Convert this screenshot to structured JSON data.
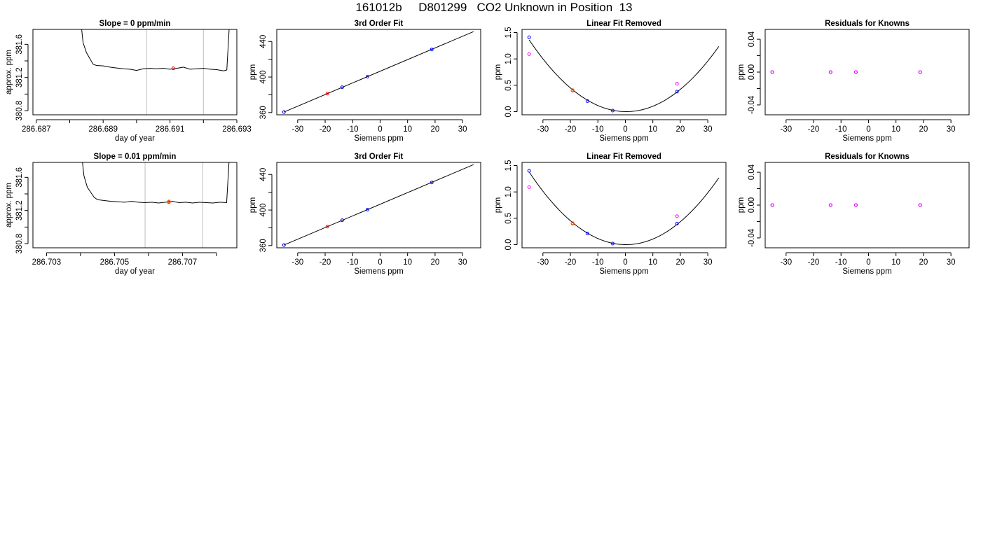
{
  "title": "161012b     D801299   CO2 Unknown in Position  13",
  "chart_data": [
    {
      "type": "line",
      "title": "Slope =  0  ppm/min",
      "xlabel": "day of year",
      "ylabel": "approx. ppm",
      "xlim": [
        286.6869,
        286.693
      ],
      "ylim": [
        380.75,
        381.78
      ],
      "xticks": [
        286.687,
        286.688,
        286.689,
        286.69,
        286.691,
        286.692,
        286.693
      ],
      "xtick_labels": [
        "286.687",
        "",
        "286.689",
        "",
        "286.691",
        "",
        "286.693"
      ],
      "yticks": [
        380.8,
        381.0,
        381.2,
        381.4,
        381.6
      ],
      "ytick_labels": [
        "380.8",
        "",
        "381.2",
        "",
        "381.6"
      ],
      "vlines": [
        286.6903,
        286.692
      ],
      "vline_color": "#bebebe",
      "series": [
        {
          "style": "line",
          "color": "#000000",
          "x": [
            286.6883,
            286.6884,
            286.6885,
            286.6886,
            286.6887,
            286.6888,
            286.689,
            286.6892,
            286.6894,
            286.6896,
            286.6898,
            286.69,
            286.6902,
            286.6904,
            286.6906,
            286.6908,
            286.691,
            286.6912,
            286.6914,
            286.6916,
            286.6918,
            286.692,
            286.6922,
            286.6924,
            286.6926,
            286.6927,
            286.6928
          ],
          "y": [
            382.0,
            381.62,
            381.5,
            381.43,
            381.36,
            381.345,
            381.34,
            381.325,
            381.315,
            381.305,
            381.3,
            381.285,
            381.305,
            381.31,
            381.305,
            381.31,
            381.3,
            381.31,
            381.325,
            381.3,
            381.305,
            381.31,
            381.3,
            381.295,
            381.28,
            381.29,
            382.0
          ]
        },
        {
          "style": "point",
          "color": "#ff0000",
          "x": [
            286.6911
          ],
          "y": [
            381.31
          ]
        }
      ]
    },
    {
      "type": "scatter",
      "title": "3rd Order Fit",
      "xlabel": "Siemens ppm",
      "ylabel": "ppm",
      "xlim": [
        -37.6,
        36.6
      ],
      "ylim": [
        357.5,
        453.6
      ],
      "xticks": [
        -30,
        -20,
        -10,
        0,
        10,
        20,
        30
      ],
      "xtick_labels": [
        "-30",
        "-20",
        "-10",
        "0",
        "10",
        "20",
        "30"
      ],
      "yticks": [
        360,
        380,
        400,
        420,
        440
      ],
      "ytick_labels": [
        "360",
        "",
        "400",
        "",
        "440"
      ],
      "series": [
        {
          "style": "line",
          "color": "#000000",
          "x": [
            -35.0,
            34.0
          ],
          "y": [
            360.6,
            451.1
          ]
        },
        {
          "style": "point",
          "color": "#0000ff",
          "x": [
            -35.0,
            -13.8,
            -4.6,
            18.8
          ],
          "y": [
            360.6,
            388.5,
            400.4,
            431.0
          ]
        },
        {
          "style": "point",
          "color": "#ff0000",
          "x": [
            -19.2
          ],
          "y": [
            381.3
          ]
        }
      ]
    },
    {
      "type": "scatter",
      "title": "Linear Fit Removed",
      "xlabel": "Siemens ppm",
      "ylabel": "ppm",
      "xlim": [
        -37.6,
        36.6
      ],
      "ylim": [
        -0.06,
        1.56
      ],
      "xticks": [
        -30,
        -20,
        -10,
        0,
        10,
        20,
        30
      ],
      "xtick_labels": [
        "-30",
        "-20",
        "-10",
        "0",
        "10",
        "20",
        "30"
      ],
      "yticks": [
        0.0,
        0.5,
        1.0,
        1.5
      ],
      "ytick_labels": [
        "0.0",
        "0.5",
        "1.0",
        "1.5"
      ],
      "curve": {
        "color": "#000000",
        "x_from": -35.0,
        "x_to": 34.0,
        "a": 0.00109,
        "b": -0.0007,
        "c": 0.0
      },
      "series": [
        {
          "style": "point",
          "color": "#0000ff",
          "x": [
            -35.0,
            -13.8,
            -4.6,
            18.8
          ],
          "y": [
            1.41,
            0.2,
            0.02,
            0.38
          ]
        },
        {
          "style": "point",
          "color": "#ff00ff",
          "x": [
            -35.0,
            18.8
          ],
          "y": [
            1.09,
            0.53
          ]
        },
        {
          "style": "point",
          "color": "#ff0000",
          "x": [
            -19.2
          ],
          "y": [
            0.4
          ]
        },
        {
          "style": "point",
          "color": "#ff8000",
          "x": [
            -19.2
          ],
          "y": [
            0.41
          ]
        }
      ]
    },
    {
      "type": "scatter",
      "title": "Residuals for Knowns",
      "xlabel": "Siemens ppm",
      "ylabel": "ppm",
      "xlim": [
        -37.6,
        36.6
      ],
      "ylim": [
        -0.052,
        0.052
      ],
      "xticks": [
        -30,
        -20,
        -10,
        0,
        10,
        20,
        30
      ],
      "xtick_labels": [
        "-30",
        "-20",
        "-10",
        "0",
        "10",
        "20",
        "30"
      ],
      "yticks": [
        -0.04,
        -0.02,
        0.0,
        0.02,
        0.04
      ],
      "ytick_labels": [
        "-0.04",
        "",
        "0.00",
        "",
        "0.04"
      ],
      "series": [
        {
          "style": "point",
          "color": "#0000ff",
          "x": [
            -35.0,
            -13.8,
            -4.6,
            18.8
          ],
          "y": [
            0.0,
            0.0,
            0.0,
            0.0
          ]
        },
        {
          "style": "point",
          "color": "#ff00ff",
          "x": [
            -35.0,
            -13.8,
            -4.6,
            18.8
          ],
          "y": [
            0.0,
            0.0,
            0.0,
            0.0
          ]
        }
      ]
    },
    {
      "type": "line",
      "title": "Slope =  0.01  ppm/min",
      "xlabel": "day of year",
      "ylabel": "approx. ppm",
      "xlim": [
        286.7026,
        286.7086
      ],
      "ylim": [
        380.75,
        381.78
      ],
      "xticks": [
        286.703,
        286.704,
        286.705,
        286.706,
        286.707,
        286.708
      ],
      "xtick_labels": [
        "286.703",
        "",
        "286.705",
        "",
        "286.707",
        ""
      ],
      "yticks": [
        380.8,
        381.0,
        381.2,
        381.4,
        381.6
      ],
      "ytick_labels": [
        "380.8",
        "",
        "381.2",
        "",
        "381.6"
      ],
      "vlines": [
        286.7059,
        286.7076
      ],
      "vline_color": "#bebebe",
      "series": [
        {
          "style": "line",
          "color": "#000000",
          "x": [
            286.704,
            286.7041,
            286.7042,
            286.7043,
            286.7044,
            286.7045,
            286.7047,
            286.7049,
            286.7051,
            286.7053,
            286.7055,
            286.7057,
            286.7059,
            286.7061,
            286.7063,
            286.7065,
            286.7067,
            286.7069,
            286.7071,
            286.7073,
            286.7075,
            286.7077,
            286.7079,
            286.7081,
            286.7083,
            286.7084
          ],
          "y": [
            382.0,
            381.62,
            381.48,
            381.42,
            381.36,
            381.33,
            381.32,
            381.31,
            381.305,
            381.3,
            381.31,
            381.3,
            381.295,
            381.3,
            381.29,
            381.3,
            381.31,
            381.295,
            381.3,
            381.29,
            381.3,
            381.295,
            381.29,
            381.3,
            381.295,
            382.0
          ]
        },
        {
          "style": "point",
          "color": "#ff0000",
          "x": [
            286.7066
          ],
          "y": [
            381.3
          ]
        },
        {
          "style": "point",
          "color": "#ff8000",
          "x": [
            286.7066
          ],
          "y": [
            381.31
          ]
        }
      ]
    },
    {
      "type": "scatter",
      "title": "3rd Order Fit",
      "xlabel": "Siemens ppm",
      "ylabel": "ppm",
      "xlim": [
        -37.6,
        36.6
      ],
      "ylim": [
        357.5,
        453.6
      ],
      "xticks": [
        -30,
        -20,
        -10,
        0,
        10,
        20,
        30
      ],
      "xtick_labels": [
        "-30",
        "-20",
        "-10",
        "0",
        "10",
        "20",
        "30"
      ],
      "yticks": [
        360,
        380,
        400,
        420,
        440
      ],
      "ytick_labels": [
        "360",
        "",
        "400",
        "",
        "440"
      ],
      "series": [
        {
          "style": "line",
          "color": "#000000",
          "x": [
            -35.0,
            34.0
          ],
          "y": [
            360.6,
            451.1
          ]
        },
        {
          "style": "point",
          "color": "#0000ff",
          "x": [
            -35.0,
            -13.8,
            -4.6,
            18.8
          ],
          "y": [
            360.6,
            388.5,
            400.4,
            431.0
          ]
        },
        {
          "style": "point",
          "color": "#ff0000",
          "x": [
            -19.2
          ],
          "y": [
            381.3
          ]
        }
      ]
    },
    {
      "type": "scatter",
      "title": "Linear Fit Removed",
      "xlabel": "Siemens ppm",
      "ylabel": "ppm",
      "xlim": [
        -37.6,
        36.6
      ],
      "ylim": [
        -0.06,
        1.56
      ],
      "xticks": [
        -30,
        -20,
        -10,
        0,
        10,
        20,
        30
      ],
      "xtick_labels": [
        "-30",
        "-20",
        "-10",
        "0",
        "10",
        "20",
        "30"
      ],
      "yticks": [
        0.0,
        0.5,
        1.0,
        1.5
      ],
      "ytick_labels": [
        "0.0",
        "0.5",
        "1.0",
        "1.5"
      ],
      "curve": {
        "color": "#000000",
        "x_from": -35.0,
        "x_to": 34.0,
        "a": 0.00111,
        "b": -0.0005,
        "c": 0.0
      },
      "series": [
        {
          "style": "point",
          "color": "#0000ff",
          "x": [
            -35.0,
            -13.8,
            -4.6,
            18.8
          ],
          "y": [
            1.4,
            0.21,
            0.02,
            0.4
          ]
        },
        {
          "style": "point",
          "color": "#ff00ff",
          "x": [
            -35.0,
            18.8
          ],
          "y": [
            1.09,
            0.54
          ]
        },
        {
          "style": "point",
          "color": "#ff0000",
          "x": [
            -19.2
          ],
          "y": [
            0.4
          ]
        },
        {
          "style": "point",
          "color": "#ff8000",
          "x": [
            -19.2
          ],
          "y": [
            0.41
          ]
        }
      ]
    },
    {
      "type": "scatter",
      "title": "Residuals for Knowns",
      "xlabel": "Siemens ppm",
      "ylabel": "ppm",
      "xlim": [
        -37.6,
        36.6
      ],
      "ylim": [
        -0.052,
        0.052
      ],
      "xticks": [
        -30,
        -20,
        -10,
        0,
        10,
        20,
        30
      ],
      "xtick_labels": [
        "-30",
        "-20",
        "-10",
        "0",
        "10",
        "20",
        "30"
      ],
      "yticks": [
        -0.04,
        -0.02,
        0.0,
        0.02,
        0.04
      ],
      "ytick_labels": [
        "-0.04",
        "",
        "0.00",
        "",
        "0.04"
      ],
      "series": [
        {
          "style": "point",
          "color": "#0000ff",
          "x": [
            -35.0,
            -13.8,
            -4.6,
            18.8
          ],
          "y": [
            0.0,
            0.0,
            0.0,
            0.0
          ]
        },
        {
          "style": "point",
          "color": "#ff00ff",
          "x": [
            -35.0,
            -13.8,
            -4.6,
            18.8
          ],
          "y": [
            0.0,
            0.0,
            0.0,
            0.0
          ]
        }
      ]
    }
  ]
}
